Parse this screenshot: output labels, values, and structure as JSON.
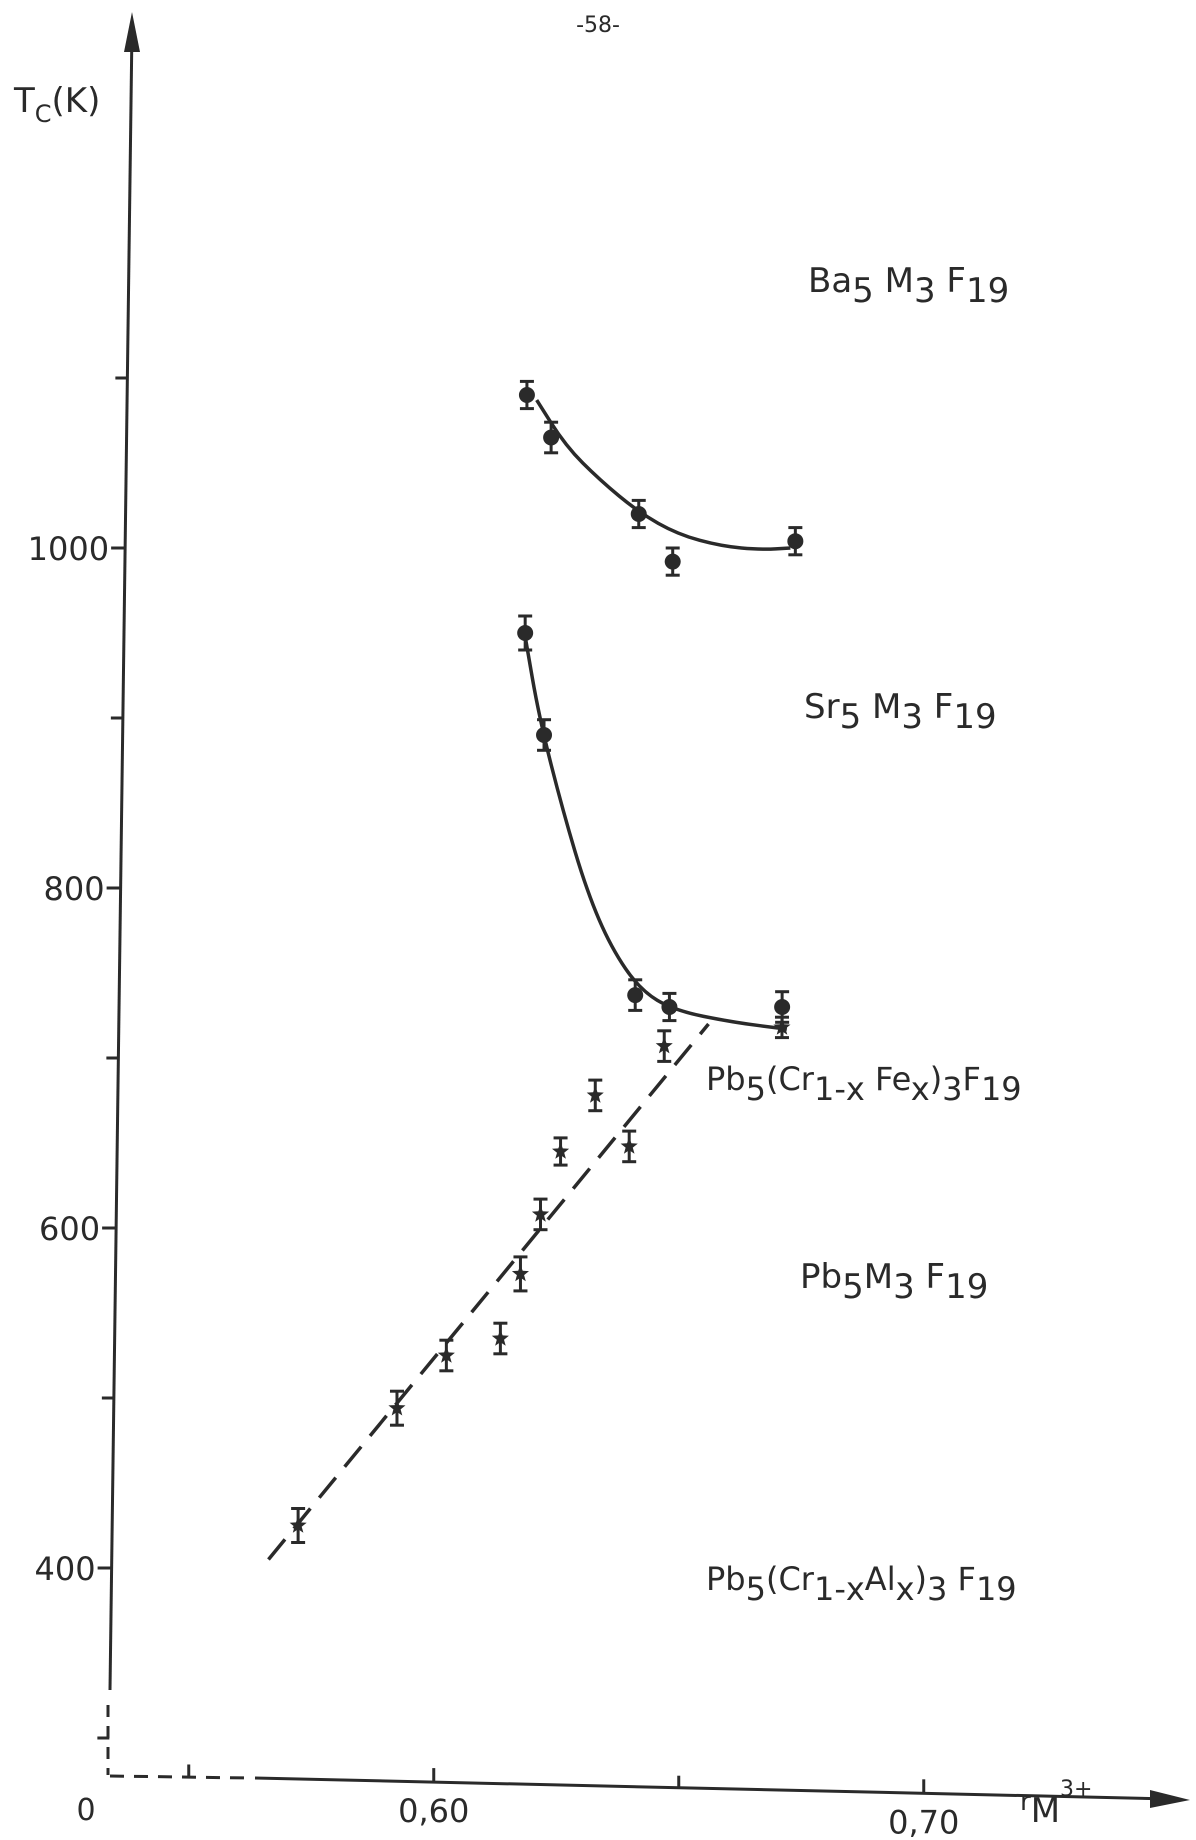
{
  "page": {
    "page_number": "-58-"
  },
  "chart_data": {
    "type": "scatter",
    "title": "",
    "x_label": {
      "main": "r",
      "sub": "M",
      "sup": "3+"
    },
    "y_label": {
      "main": "T",
      "sub": "C",
      "unit": "(K)"
    },
    "x_ticks": [
      {
        "value": 0.6,
        "label": "0,60"
      },
      {
        "value": 0.7,
        "label": "0,70"
      }
    ],
    "x_minor_ticks": [
      0.55,
      0.65
    ],
    "y_ticks": [
      {
        "value": 400,
        "label": "400"
      },
      {
        "value": 600,
        "label": "600"
      },
      {
        "value": 800,
        "label": "800"
      },
      {
        "value": 1000,
        "label": "1000"
      }
    ],
    "y_minor_ticks": [
      300,
      500,
      700,
      900,
      1100
    ],
    "origin_label": "0",
    "axis_break": "dashed axes between origin and start of scale",
    "xlim_real": [
      0.532,
      0.7
    ],
    "ylim_real": [
      255,
      1110
    ],
    "series": [
      {
        "name": "Ba5M3F19",
        "marker": "circle",
        "fit": "curve",
        "points": [
          {
            "x": 0.617,
            "y": 1090,
            "err": 8
          },
          {
            "x": 0.622,
            "y": 1065,
            "err": 9
          },
          {
            "x": 0.64,
            "y": 1020,
            "err": 8
          },
          {
            "x": 0.647,
            "y": 992,
            "err": 8
          },
          {
            "x": 0.672,
            "y": 1004,
            "err": 8
          }
        ],
        "curve": [
          {
            "x": 0.619,
            "y": 1087
          },
          {
            "x": 0.625,
            "y": 1060
          },
          {
            "x": 0.632,
            "y": 1040
          },
          {
            "x": 0.64,
            "y": 1021
          },
          {
            "x": 0.648,
            "y": 1008
          },
          {
            "x": 0.657,
            "y": 1001
          },
          {
            "x": 0.665,
            "y": 999
          },
          {
            "x": 0.671,
            "y": 1000
          }
        ]
      },
      {
        "name": "Sr5M3F19",
        "marker": "circle",
        "fit": "curve",
        "points": [
          {
            "x": 0.617,
            "y": 950,
            "err": 10
          },
          {
            "x": 0.621,
            "y": 890,
            "err": 9
          },
          {
            "x": 0.64,
            "y": 737,
            "err": 9
          },
          {
            "x": 0.647,
            "y": 730,
            "err": 8
          },
          {
            "x": 0.67,
            "y": 730,
            "err": 9
          }
        ],
        "curve": [
          {
            "x": 0.617,
            "y": 948
          },
          {
            "x": 0.62,
            "y": 900
          },
          {
            "x": 0.625,
            "y": 845
          },
          {
            "x": 0.63,
            "y": 798
          },
          {
            "x": 0.635,
            "y": 765
          },
          {
            "x": 0.641,
            "y": 740
          },
          {
            "x": 0.648,
            "y": 728
          },
          {
            "x": 0.66,
            "y": 721
          },
          {
            "x": 0.671,
            "y": 717
          }
        ]
      },
      {
        "name": "Pb5(Cr1-xFex)3F19",
        "marker": "star",
        "points": [
          {
            "x": 0.625,
            "y": 645,
            "err": 8
          },
          {
            "x": 0.632,
            "y": 678,
            "err": 9
          },
          {
            "x": 0.639,
            "y": 648,
            "err": 9
          },
          {
            "x": 0.646,
            "y": 707,
            "err": 9
          },
          {
            "x": 0.67,
            "y": 718,
            "err": 6
          }
        ]
      },
      {
        "name": "Pb5M3F19",
        "marker": "star",
        "points": [
          {
            "x": 0.617,
            "y": 573,
            "err": 10
          },
          {
            "x": 0.621,
            "y": 608,
            "err": 9
          }
        ]
      },
      {
        "name": "Pb5(Cr1-xAlx)3F19",
        "marker": "star",
        "points": [
          {
            "x": 0.572,
            "y": 425,
            "err": 10
          },
          {
            "x": 0.592,
            "y": 494,
            "err": 10
          },
          {
            "x": 0.602,
            "y": 525,
            "err": 9
          },
          {
            "x": 0.613,
            "y": 535,
            "err": 9
          }
        ]
      }
    ],
    "dashed_fit_line": {
      "from": {
        "x": 0.566,
        "y": 405
      },
      "to": {
        "x": 0.655,
        "y": 720
      }
    },
    "annotations": [
      {
        "series": "Ba5M3F19",
        "base": "Ba",
        "sub1": "5",
        "mid": " M",
        "sub2": "3",
        "tail": " F",
        "sub3": "19"
      },
      {
        "series": "Sr5M3F19",
        "base": "Sr",
        "sub1": "5",
        "mid": " M",
        "sub2": "3",
        "tail": " F",
        "sub3": "19"
      },
      {
        "series": "Pb5(Cr1-xFex)3F19",
        "base": "Pb",
        "sub1": "5",
        "mid": "(Cr",
        "sub2": "1-x",
        "tail": " Fe",
        "sub3": "x",
        "tail2": ")",
        "sub4": "3",
        "tail3": "F",
        "sub5": "19"
      },
      {
        "series": "Pb5M3F19",
        "base": "Pb",
        "sub1": "5",
        "mid": "M",
        "sub2": "3",
        "tail": " F",
        "sub3": "19"
      },
      {
        "series": "Pb5(Cr1-xAlx)3F19",
        "base": "Pb",
        "sub1": "5",
        "mid": "(Cr",
        "sub2": "1-x",
        "tail": "Al",
        "sub3": "x",
        "tail2": ")",
        "sub4": "3",
        "tail3": " F",
        "sub5": "19"
      }
    ],
    "colors": {
      "ink": "#2a2a2a",
      "background": "#ffffff"
    }
  }
}
